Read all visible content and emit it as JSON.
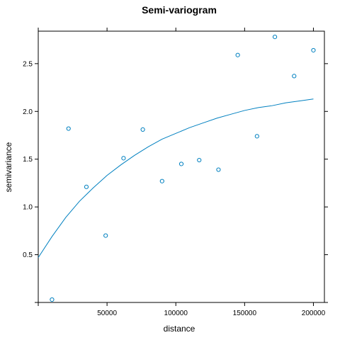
{
  "chart_data": {
    "type": "scatter",
    "title": "Semi-variogram",
    "xlabel": "distance",
    "ylabel": "semivariance",
    "xlim": [
      0,
      208000
    ],
    "ylim": [
      0,
      2.84
    ],
    "x_ticks": [
      50000,
      100000,
      150000,
      200000
    ],
    "x_tick_labels": [
      "50000",
      "100000",
      "150000",
      "200000"
    ],
    "y_ticks": [
      0.5,
      1.0,
      1.5,
      2.0,
      2.5
    ],
    "y_tick_labels": [
      "0.5",
      "1.0",
      "1.5",
      "2.0",
      "2.5"
    ],
    "grid": false,
    "legend": "none",
    "color": "#0080c0",
    "points": [
      {
        "x": 10000,
        "y": 0.03
      },
      {
        "x": 22000,
        "y": 1.82
      },
      {
        "x": 35000,
        "y": 1.21
      },
      {
        "x": 49000,
        "y": 0.7
      },
      {
        "x": 62000,
        "y": 1.51
      },
      {
        "x": 76000,
        "y": 1.81
      },
      {
        "x": 90000,
        "y": 1.27
      },
      {
        "x": 104000,
        "y": 1.45
      },
      {
        "x": 117000,
        "y": 1.49
      },
      {
        "x": 131000,
        "y": 1.39
      },
      {
        "x": 145000,
        "y": 2.59
      },
      {
        "x": 159000,
        "y": 1.74
      },
      {
        "x": 172000,
        "y": 2.78
      },
      {
        "x": 186000,
        "y": 2.37
      },
      {
        "x": 200000,
        "y": 2.64
      }
    ],
    "fit_line": [
      {
        "x": 0,
        "y": 0.47
      },
      {
        "x": 10000,
        "y": 0.69
      },
      {
        "x": 20000,
        "y": 0.89
      },
      {
        "x": 30000,
        "y": 1.06
      },
      {
        "x": 40000,
        "y": 1.2
      },
      {
        "x": 50000,
        "y": 1.33
      },
      {
        "x": 60000,
        "y": 1.44
      },
      {
        "x": 70000,
        "y": 1.54
      },
      {
        "x": 80000,
        "y": 1.63
      },
      {
        "x": 90000,
        "y": 1.71
      },
      {
        "x": 100000,
        "y": 1.77
      },
      {
        "x": 110000,
        "y": 1.83
      },
      {
        "x": 120000,
        "y": 1.88
      },
      {
        "x": 130000,
        "y": 1.93
      },
      {
        "x": 140000,
        "y": 1.97
      },
      {
        "x": 150000,
        "y": 2.01
      },
      {
        "x": 160000,
        "y": 2.04
      },
      {
        "x": 170000,
        "y": 2.06
      },
      {
        "x": 180000,
        "y": 2.09
      },
      {
        "x": 190000,
        "y": 2.11
      },
      {
        "x": 200000,
        "y": 2.13
      }
    ]
  }
}
